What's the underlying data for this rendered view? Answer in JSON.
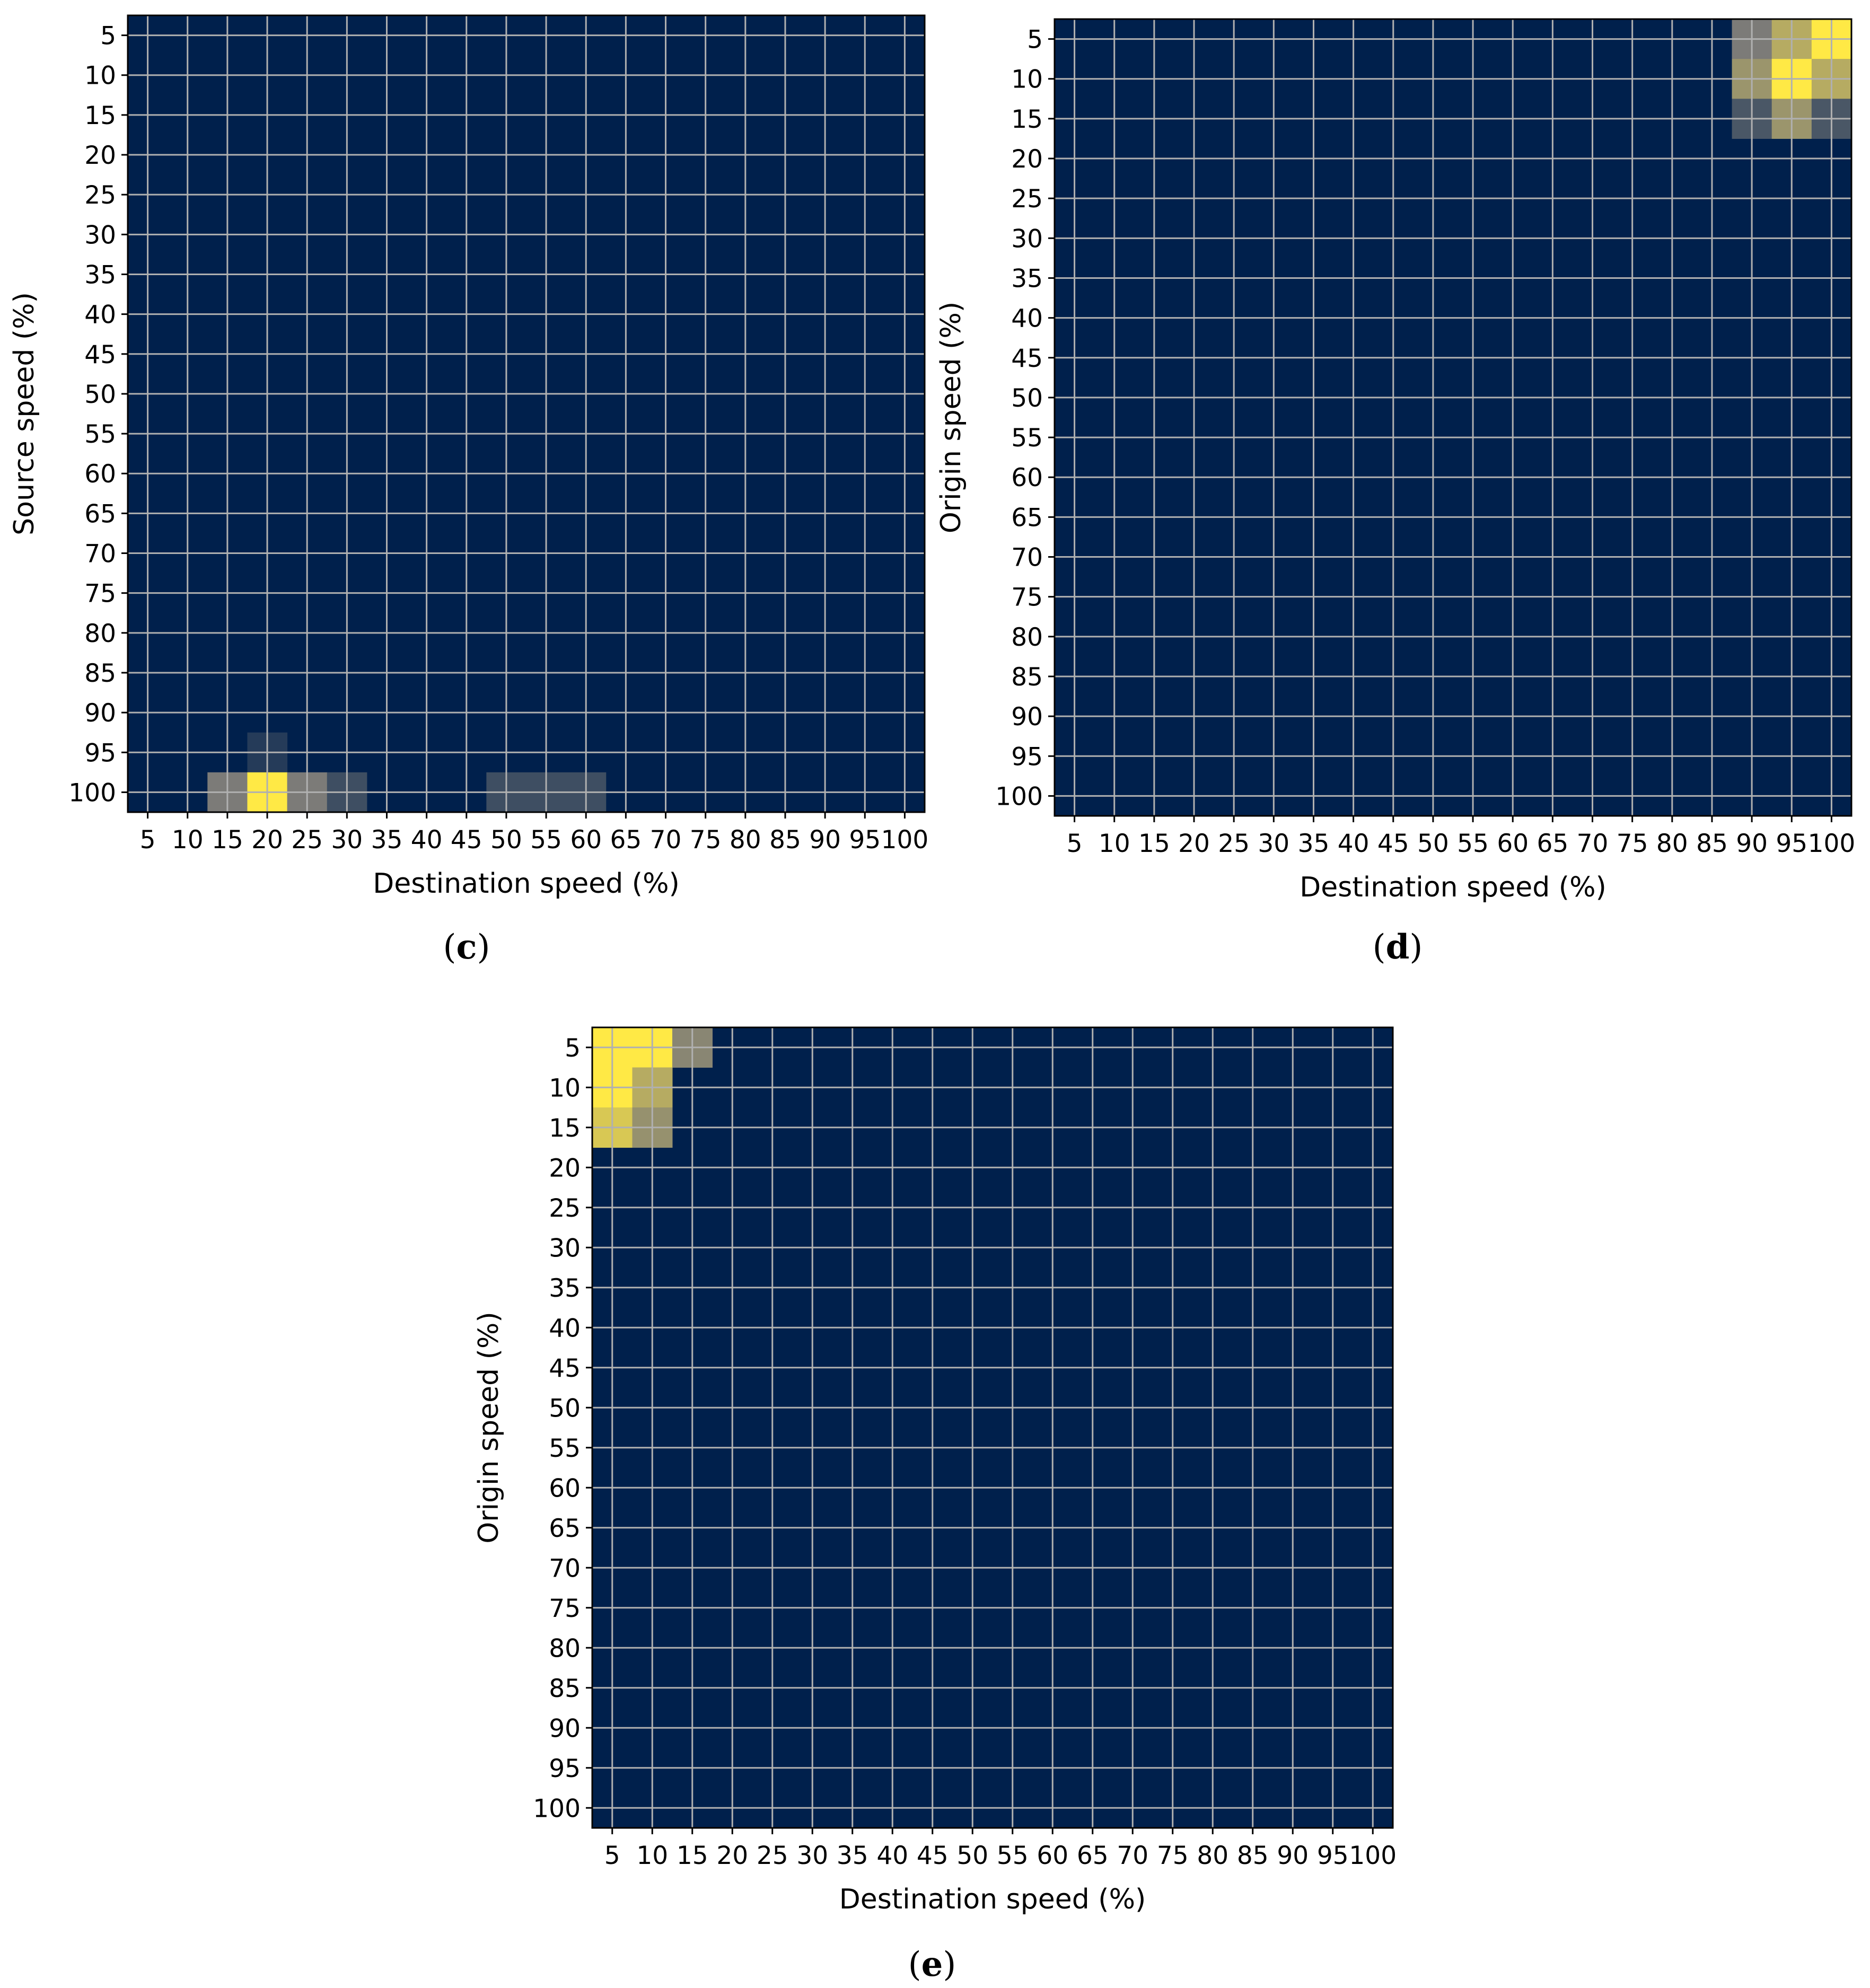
{
  "colors": {
    "background_cell": "#00204c",
    "grid": "#b0b0b0",
    "frame": "#000000",
    "colormap_low": "#00204c",
    "colormap_mid": "#7c7b78",
    "colormap_high": "#ffe945"
  },
  "chart_data": [
    {
      "type": "heatmap",
      "panel": "c",
      "caption_open": "(",
      "caption_letter": "c",
      "caption_close": ")",
      "xlabel": "Destination speed (%)",
      "ylabel": "Source speed (%)",
      "x_ticks": [
        "5",
        "10",
        "15",
        "20",
        "25",
        "30",
        "35",
        "40",
        "45",
        "50",
        "55",
        "60",
        "65",
        "70",
        "75",
        "80",
        "85",
        "90",
        "95",
        "100"
      ],
      "y_ticks": [
        "5",
        "10",
        "15",
        "20",
        "25",
        "30",
        "35",
        "40",
        "45",
        "50",
        "55",
        "60",
        "65",
        "70",
        "75",
        "80",
        "85",
        "90",
        "95",
        "100"
      ],
      "value_range": [
        0,
        1
      ],
      "nonzero_cells": [
        {
          "x": 20,
          "y": 95,
          "value": 0.15
        },
        {
          "x": 15,
          "y": 100,
          "value": 0.5
        },
        {
          "x": 20,
          "y": 100,
          "value": 1.0
        },
        {
          "x": 25,
          "y": 100,
          "value": 0.5
        },
        {
          "x": 30,
          "y": 100,
          "value": 0.25
        },
        {
          "x": 50,
          "y": 100,
          "value": 0.25
        },
        {
          "x": 55,
          "y": 100,
          "value": 0.25
        },
        {
          "x": 60,
          "y": 100,
          "value": 0.25
        }
      ]
    },
    {
      "type": "heatmap",
      "panel": "d",
      "caption_open": "(",
      "caption_letter": "d",
      "caption_close": ")",
      "xlabel": "Destination speed (%)",
      "ylabel": "Origin speed (%)",
      "x_ticks": [
        "5",
        "10",
        "15",
        "20",
        "25",
        "30",
        "35",
        "40",
        "45",
        "50",
        "55",
        "60",
        "65",
        "70",
        "75",
        "80",
        "85",
        "90",
        "95",
        "100"
      ],
      "y_ticks": [
        "5",
        "10",
        "15",
        "20",
        "25",
        "30",
        "35",
        "40",
        "45",
        "50",
        "55",
        "60",
        "65",
        "70",
        "75",
        "80",
        "85",
        "90",
        "95",
        "100"
      ],
      "value_range": [
        0,
        1
      ],
      "nonzero_cells": [
        {
          "x": 90,
          "y": 5,
          "value": 0.5
        },
        {
          "x": 95,
          "y": 5,
          "value": 0.72
        },
        {
          "x": 100,
          "y": 5,
          "value": 1.0
        },
        {
          "x": 90,
          "y": 10,
          "value": 0.62
        },
        {
          "x": 95,
          "y": 10,
          "value": 1.0
        },
        {
          "x": 100,
          "y": 10,
          "value": 0.72
        },
        {
          "x": 90,
          "y": 15,
          "value": 0.3
        },
        {
          "x": 95,
          "y": 15,
          "value": 0.62
        },
        {
          "x": 100,
          "y": 15,
          "value": 0.3
        }
      ]
    },
    {
      "type": "heatmap",
      "panel": "e",
      "caption_open": "(",
      "caption_letter": "e",
      "caption_close": ")",
      "xlabel": "Destination speed (%)",
      "ylabel": "Origin speed (%)",
      "x_ticks": [
        "5",
        "10",
        "15",
        "20",
        "25",
        "30",
        "35",
        "40",
        "45",
        "50",
        "55",
        "60",
        "65",
        "70",
        "75",
        "80",
        "85",
        "90",
        "95",
        "100"
      ],
      "y_ticks": [
        "5",
        "10",
        "15",
        "20",
        "25",
        "30",
        "35",
        "40",
        "45",
        "50",
        "55",
        "60",
        "65",
        "70",
        "75",
        "80",
        "85",
        "90",
        "95",
        "100"
      ],
      "value_range": [
        0,
        1
      ],
      "nonzero_cells": [
        {
          "x": 5,
          "y": 5,
          "value": 1.0
        },
        {
          "x": 10,
          "y": 5,
          "value": 1.0
        },
        {
          "x": 15,
          "y": 5,
          "value": 0.55
        },
        {
          "x": 5,
          "y": 10,
          "value": 1.0
        },
        {
          "x": 10,
          "y": 10,
          "value": 0.72
        },
        {
          "x": 5,
          "y": 15,
          "value": 0.85
        },
        {
          "x": 10,
          "y": 15,
          "value": 0.6
        }
      ]
    }
  ]
}
